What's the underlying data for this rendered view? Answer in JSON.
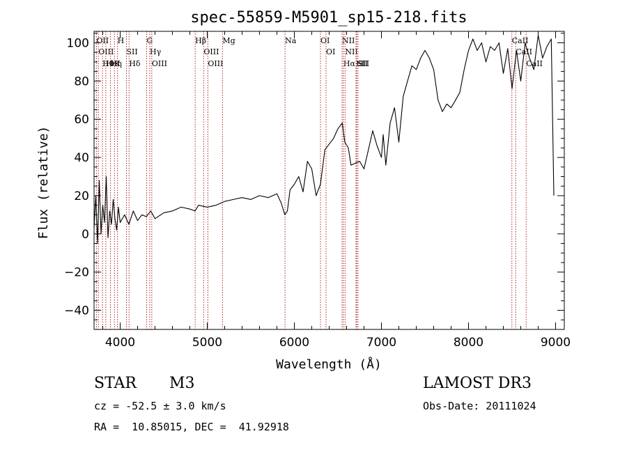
{
  "chart_data": {
    "type": "line",
    "title": "spec-55859-M5901_sp15-218.fits",
    "xlabel": "Wavelength (Å)",
    "ylabel": "Flux (relative)",
    "xlim": [
      3700,
      9100
    ],
    "ylim": [
      -50,
      106
    ],
    "x_ticks": [
      4000,
      5000,
      6000,
      7000,
      8000,
      9000
    ],
    "y_ticks": [
      -40,
      -20,
      0,
      20,
      40,
      60,
      80,
      100
    ],
    "grid": false,
    "series": [
      {
        "name": "flux",
        "color": "#000000",
        "x": [
          3700,
          3720,
          3740,
          3760,
          3780,
          3800,
          3820,
          3840,
          3860,
          3880,
          3900,
          3920,
          3940,
          3960,
          3980,
          4000,
          4050,
          4100,
          4150,
          4200,
          4250,
          4300,
          4350,
          4400,
          4500,
          4600,
          4700,
          4800,
          4860,
          4900,
          5000,
          5100,
          5200,
          5300,
          5400,
          5500,
          5600,
          5700,
          5800,
          5850,
          5890,
          5920,
          5950,
          6000,
          6050,
          6100,
          6150,
          6200,
          6250,
          6300,
          6350,
          6400,
          6450,
          6500,
          6550,
          6580,
          6620,
          6650,
          6700,
          6750,
          6800,
          6850,
          6900,
          6950,
          7000,
          7020,
          7050,
          7100,
          7150,
          7200,
          7250,
          7300,
          7350,
          7400,
          7450,
          7500,
          7550,
          7600,
          7650,
          7700,
          7750,
          7800,
          7850,
          7900,
          7950,
          8000,
          8050,
          8100,
          8150,
          8200,
          8250,
          8300,
          8350,
          8400,
          8450,
          8500,
          8550,
          8600,
          8650,
          8700,
          8750,
          8800,
          8850,
          8900,
          8950,
          8980
        ],
        "y": [
          3,
          20,
          -5,
          28,
          0,
          15,
          6,
          30,
          -2,
          12,
          5,
          18,
          8,
          2,
          14,
          6,
          10,
          5,
          12,
          7,
          10,
          9,
          12,
          8,
          11,
          12,
          14,
          13,
          12,
          15,
          14,
          15,
          17,
          18,
          19,
          18,
          20,
          19,
          21,
          16,
          10,
          12,
          23,
          26,
          30,
          22,
          38,
          34,
          20,
          26,
          44,
          47,
          50,
          55,
          58,
          48,
          45,
          36,
          37,
          38,
          34,
          44,
          54,
          46,
          40,
          52,
          36,
          58,
          66,
          48,
          72,
          80,
          88,
          86,
          92,
          96,
          92,
          86,
          70,
          64,
          68,
          66,
          70,
          74,
          86,
          96,
          102,
          96,
          100,
          90,
          98,
          96,
          100,
          84,
          97,
          76,
          96,
          80,
          100,
          92,
          86,
          104,
          92,
          98,
          102,
          20
        ]
      }
    ],
    "lines": [
      {
        "wavelength": 3727,
        "labels": [
          "OII"
        ]
      },
      {
        "wavelength": 3750,
        "labels": [
          "OIII"
        ]
      },
      {
        "wavelength": 3797,
        "labels": [
          "Hθ"
        ]
      },
      {
        "wavelength": 3835,
        "labels": [
          "HeI"
        ]
      },
      {
        "wavelength": 3889,
        "labels": [
          "Hη"
        ]
      },
      {
        "wavelength": 3934,
        "labels": [
          "K"
        ]
      },
      {
        "wavelength": 3969,
        "labels": [
          "H"
        ]
      },
      {
        "wavelength": 4072,
        "labels": [
          "SII"
        ]
      },
      {
        "wavelength": 4102,
        "labels": [
          "Hδ"
        ]
      },
      {
        "wavelength": 4304,
        "labels": [
          "G"
        ]
      },
      {
        "wavelength": 4340,
        "labels": [
          "Hγ"
        ]
      },
      {
        "wavelength": 4363,
        "labels": [
          "OIII"
        ]
      },
      {
        "wavelength": 4861,
        "labels": [
          "Hβ"
        ]
      },
      {
        "wavelength": 4959,
        "labels": [
          "OIII"
        ]
      },
      {
        "wavelength": 5007,
        "labels": [
          "OIII"
        ]
      },
      {
        "wavelength": 5175,
        "labels": [
          "Mg"
        ]
      },
      {
        "wavelength": 5893,
        "labels": [
          "Na"
        ]
      },
      {
        "wavelength": 6300,
        "labels": [
          "OI"
        ]
      },
      {
        "wavelength": 6364,
        "labels": [
          "OI"
        ]
      },
      {
        "wavelength": 6548,
        "labels": [
          "NII"
        ]
      },
      {
        "wavelength": 6563,
        "labels": [
          "Hα"
        ]
      },
      {
        "wavelength": 6583,
        "labels": [
          "NII"
        ]
      },
      {
        "wavelength": 6708,
        "labels": [
          "Li"
        ]
      },
      {
        "wavelength": 6716,
        "labels": [
          "SII"
        ]
      },
      {
        "wavelength": 6731,
        "labels": [
          "SII"
        ]
      },
      {
        "wavelength": 8498,
        "labels": [
          "CaII"
        ]
      },
      {
        "wavelength": 8542,
        "labels": [
          "CaII"
        ]
      },
      {
        "wavelength": 8662,
        "labels": [
          "CaII"
        ]
      }
    ],
    "line_color": "#b02020"
  },
  "info": {
    "object_class": "STAR",
    "subclass": "M3",
    "survey": "LAMOST DR3",
    "cz_text": "cz = -52.5 ± 3.0 km/s",
    "obs_date_text": "Obs-Date: 20111024",
    "coords_text": "RA =  10.85015, DEC =  41.92918"
  }
}
